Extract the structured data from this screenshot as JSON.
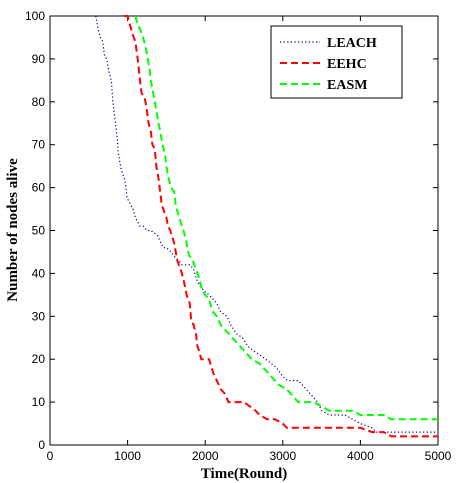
{
  "chart_data": {
    "type": "line",
    "title": "",
    "xlabel": "Time(Round)",
    "ylabel": "Number of nodes alive",
    "xlim": [
      0,
      5000
    ],
    "ylim": [
      0,
      100
    ],
    "xticks": [
      0,
      1000,
      2000,
      3000,
      4000,
      5000
    ],
    "yticks": [
      0,
      10,
      20,
      30,
      40,
      50,
      60,
      70,
      80,
      90,
      100
    ],
    "grid": false,
    "legend_position": "top-right",
    "series": [
      {
        "name": "LEACH",
        "color": "#00008b",
        "style": "dotted",
        "points": [
          [
            590,
            100
          ],
          [
            620,
            97
          ],
          [
            650,
            95
          ],
          [
            680,
            94
          ],
          [
            700,
            91
          ],
          [
            730,
            90
          ],
          [
            760,
            87
          ],
          [
            790,
            85
          ],
          [
            810,
            80
          ],
          [
            830,
            77
          ],
          [
            850,
            74
          ],
          [
            870,
            71
          ],
          [
            880,
            68
          ],
          [
            900,
            66
          ],
          [
            920,
            64
          ],
          [
            940,
            63
          ],
          [
            960,
            62
          ],
          [
            980,
            60
          ],
          [
            990,
            58
          ],
          [
            1010,
            57
          ],
          [
            1040,
            56
          ],
          [
            1070,
            55
          ],
          [
            1100,
            53
          ],
          [
            1130,
            52
          ],
          [
            1160,
            51
          ],
          [
            1200,
            51
          ],
          [
            1250,
            50
          ],
          [
            1300,
            50
          ],
          [
            1380,
            49
          ],
          [
            1460,
            46
          ],
          [
            1500,
            46
          ],
          [
            1560,
            45
          ],
          [
            1600,
            44
          ],
          [
            1660,
            43
          ],
          [
            1700,
            42
          ],
          [
            1760,
            42
          ],
          [
            1800,
            42
          ],
          [
            1850,
            41
          ],
          [
            1900,
            38
          ],
          [
            1940,
            37
          ],
          [
            1980,
            36
          ],
          [
            2050,
            35
          ],
          [
            2100,
            34
          ],
          [
            2150,
            33
          ],
          [
            2200,
            31
          ],
          [
            2280,
            30
          ],
          [
            2330,
            28
          ],
          [
            2400,
            26
          ],
          [
            2480,
            25
          ],
          [
            2550,
            23
          ],
          [
            2620,
            22
          ],
          [
            2700,
            21
          ],
          [
            2780,
            20
          ],
          [
            2850,
            19
          ],
          [
            2920,
            18
          ],
          [
            3000,
            16
          ],
          [
            3060,
            15
          ],
          [
            3200,
            15
          ],
          [
            3300,
            13
          ],
          [
            3350,
            12
          ],
          [
            3450,
            10
          ],
          [
            3500,
            8
          ],
          [
            3600,
            7
          ],
          [
            3800,
            7
          ],
          [
            4000,
            5
          ],
          [
            4150,
            4
          ],
          [
            4200,
            3
          ],
          [
            5000,
            3
          ]
        ]
      },
      {
        "name": "EEHC",
        "color": "#ff0000",
        "style": "dashed",
        "points": [
          [
            960,
            100
          ],
          [
            1000,
            100
          ],
          [
            1030,
            98
          ],
          [
            1060,
            96
          ],
          [
            1080,
            95
          ],
          [
            1100,
            94
          ],
          [
            1130,
            90
          ],
          [
            1160,
            85
          ],
          [
            1180,
            82
          ],
          [
            1220,
            81
          ],
          [
            1240,
            79
          ],
          [
            1270,
            75
          ],
          [
            1300,
            73
          ],
          [
            1320,
            70
          ],
          [
            1350,
            69
          ],
          [
            1370,
            65
          ],
          [
            1400,
            62
          ],
          [
            1420,
            59
          ],
          [
            1440,
            56
          ],
          [
            1460,
            55
          ],
          [
            1500,
            53
          ],
          [
            1520,
            51
          ],
          [
            1550,
            50
          ],
          [
            1600,
            47
          ],
          [
            1640,
            43
          ],
          [
            1680,
            41
          ],
          [
            1700,
            40
          ],
          [
            1740,
            37
          ],
          [
            1760,
            35
          ],
          [
            1800,
            33
          ],
          [
            1820,
            29
          ],
          [
            1850,
            28
          ],
          [
            1880,
            26
          ],
          [
            1900,
            23
          ],
          [
            1920,
            22
          ],
          [
            1950,
            20
          ],
          [
            2000,
            20
          ],
          [
            2050,
            20
          ],
          [
            2100,
            17
          ],
          [
            2150,
            15
          ],
          [
            2200,
            13
          ],
          [
            2250,
            12
          ],
          [
            2300,
            10
          ],
          [
            2400,
            10
          ],
          [
            2500,
            10
          ],
          [
            2650,
            8
          ],
          [
            2700,
            7
          ],
          [
            2800,
            6
          ],
          [
            2900,
            6
          ],
          [
            3000,
            5
          ],
          [
            3050,
            4
          ],
          [
            3200,
            4
          ],
          [
            4000,
            4
          ],
          [
            4150,
            3
          ],
          [
            4300,
            3
          ],
          [
            4400,
            2
          ],
          [
            4800,
            2
          ],
          [
            5000,
            2
          ]
        ]
      },
      {
        "name": "EASM",
        "color": "#00ff00",
        "style": "dashed",
        "points": [
          [
            1100,
            100
          ],
          [
            1130,
            98
          ],
          [
            1160,
            97
          ],
          [
            1200,
            95
          ],
          [
            1230,
            93
          ],
          [
            1250,
            91
          ],
          [
            1280,
            88
          ],
          [
            1300,
            85
          ],
          [
            1320,
            83
          ],
          [
            1350,
            80
          ],
          [
            1380,
            77
          ],
          [
            1400,
            75
          ],
          [
            1430,
            72
          ],
          [
            1450,
            70
          ],
          [
            1480,
            68
          ],
          [
            1500,
            65
          ],
          [
            1530,
            62
          ],
          [
            1560,
            60
          ],
          [
            1600,
            59
          ],
          [
            1620,
            56
          ],
          [
            1650,
            54
          ],
          [
            1700,
            51
          ],
          [
            1720,
            50
          ],
          [
            1750,
            48
          ],
          [
            1780,
            45
          ],
          [
            1800,
            44
          ],
          [
            1840,
            43
          ],
          [
            1880,
            41
          ],
          [
            1920,
            39
          ],
          [
            1960,
            36
          ],
          [
            2000,
            35
          ],
          [
            2050,
            34
          ],
          [
            2080,
            32
          ],
          [
            2100,
            31
          ],
          [
            2150,
            30
          ],
          [
            2200,
            28
          ],
          [
            2250,
            27
          ],
          [
            2300,
            26
          ],
          [
            2350,
            25
          ],
          [
            2400,
            24
          ],
          [
            2450,
            23
          ],
          [
            2500,
            22
          ],
          [
            2550,
            21
          ],
          [
            2600,
            20
          ],
          [
            2700,
            19
          ],
          [
            2750,
            18
          ],
          [
            2800,
            17
          ],
          [
            2850,
            16
          ],
          [
            2900,
            15
          ],
          [
            2950,
            14
          ],
          [
            3050,
            13
          ],
          [
            3100,
            12
          ],
          [
            3150,
            11
          ],
          [
            3200,
            10
          ],
          [
            3400,
            10
          ],
          [
            3500,
            9
          ],
          [
            3600,
            8
          ],
          [
            3900,
            8
          ],
          [
            4000,
            7
          ],
          [
            4300,
            7
          ],
          [
            4400,
            6
          ],
          [
            5000,
            6
          ]
        ]
      }
    ]
  }
}
